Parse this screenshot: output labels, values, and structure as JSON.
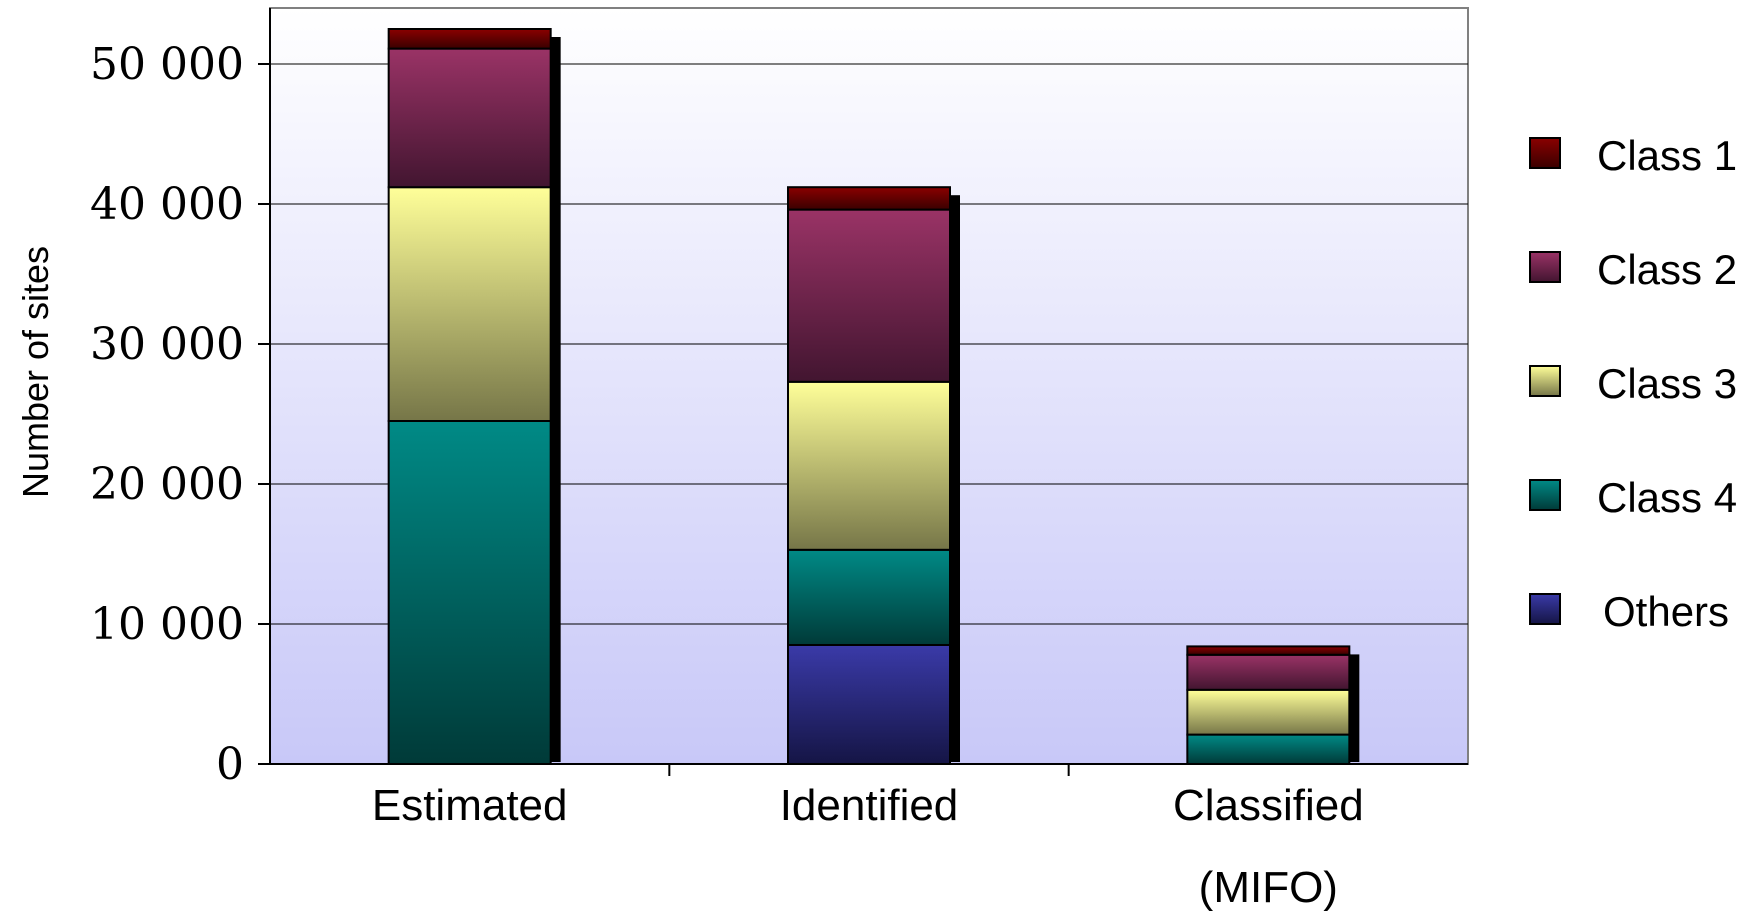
{
  "chart_data": {
    "type": "bar",
    "stacked": true,
    "categories": [
      "Estimated",
      "Identified",
      "Classified\n(MIFO)"
    ],
    "series": [
      {
        "name": "Others",
        "values": [
          0,
          8500,
          0
        ],
        "colors": [
          "#3A3AA8",
          "#151545"
        ]
      },
      {
        "name": "Class 4",
        "values": [
          24500,
          6800,
          2100
        ],
        "colors": [
          "#008A86",
          "#003A38"
        ]
      },
      {
        "name": "Class 3",
        "values": [
          16700,
          12000,
          3200
        ],
        "colors": [
          "#FFFF99",
          "#767648"
        ]
      },
      {
        "name": "Class 2",
        "values": [
          9900,
          12300,
          2500
        ],
        "colors": [
          "#9A3366",
          "#421530"
        ]
      },
      {
        "name": "Class 1",
        "values": [
          1400,
          1600,
          600
        ],
        "colors": [
          "#8A0000",
          "#3A0000"
        ]
      }
    ],
    "legend_order": [
      "Class 1",
      "Class 2",
      "Class 3",
      "Class 4",
      "Others"
    ],
    "title": "",
    "xlabel": "",
    "ylabel": "Number of sites",
    "ylim": [
      0,
      54000
    ],
    "yticks": [
      0,
      10000,
      20000,
      30000,
      40000,
      50000
    ],
    "ytick_labels": [
      "0",
      "10 000",
      "20 000",
      "30 000",
      "40 000",
      "50 000"
    ],
    "grid": true,
    "legend_position": "right",
    "background_gradient": [
      "#FFFFFF",
      "#C8C8F8"
    ]
  }
}
